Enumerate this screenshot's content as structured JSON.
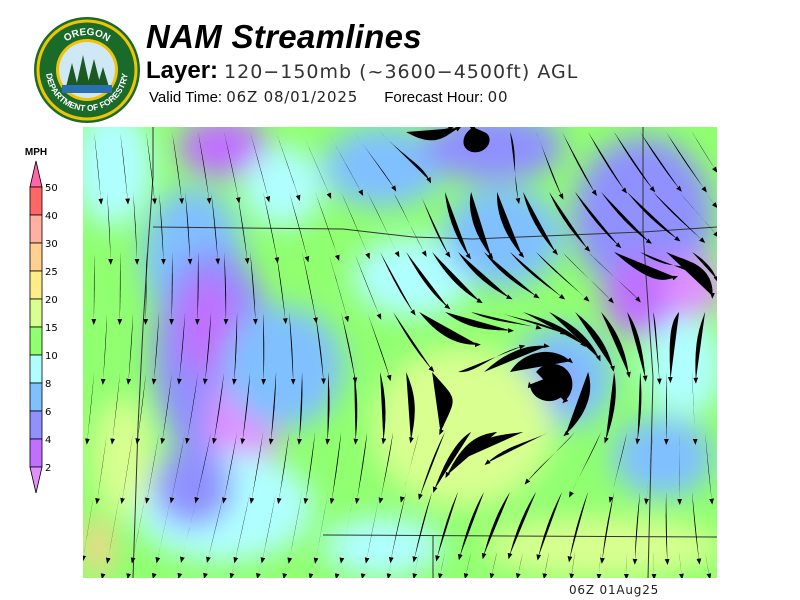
{
  "logo": {
    "top_text": "OREGON",
    "bottom_text": "DEPARTMENT OF FORESTRY"
  },
  "header": {
    "title": "NAM Streamlines",
    "layer_label": "Layer:",
    "layer_value": "120−150mb (~3600−4500ft) AGL",
    "valid_label": "Valid Time:",
    "valid_value": "06Z 08/01/2025",
    "forecast_label": "Forecast Hour:",
    "forecast_value": "00"
  },
  "colorbar": {
    "unit": "MPH",
    "ticks": [
      "50",
      "40",
      "30",
      "25",
      "20",
      "15",
      "10",
      "8",
      "6",
      "4",
      "2"
    ],
    "colors": [
      "#ff66aa",
      "#ff6666",
      "#ffb0a0",
      "#ffd090",
      "#ffee88",
      "#d8ff90",
      "#90ff70",
      "#b0ffff",
      "#80c0ff",
      "#9090ff",
      "#c070ff",
      "#e090ff"
    ]
  },
  "footer": {
    "timestamp": "06Z 01Aug25"
  }
}
